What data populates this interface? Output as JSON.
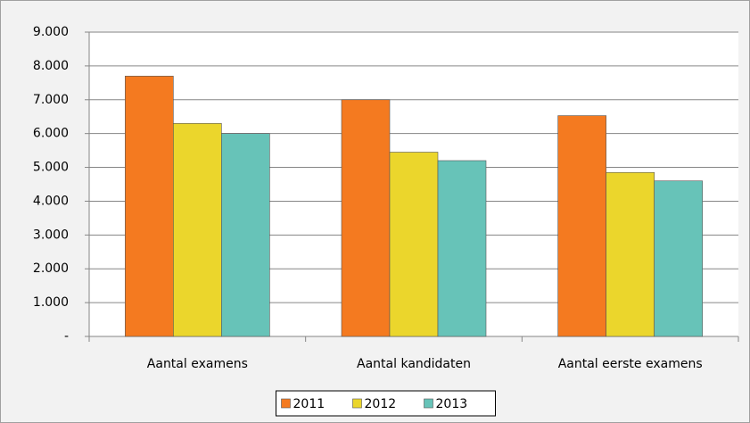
{
  "chart_data": {
    "type": "bar",
    "categories": [
      "Aantal examens",
      "Aantal kandidaten",
      "Aantal eerste examens"
    ],
    "series": [
      {
        "name": "2011",
        "color": "#f47a20",
        "values": [
          7700,
          7000,
          6530
        ]
      },
      {
        "name": "2012",
        "color": "#ebd62c",
        "values": [
          6300,
          5450,
          4850
        ]
      },
      {
        "name": "2013",
        "color": "#67c3b8",
        "values": [
          6000,
          5200,
          4600
        ]
      }
    ],
    "ylim": [
      0,
      9000
    ],
    "yticks": [
      {
        "value": 0,
        "label": "-"
      },
      {
        "value": 1000,
        "label": "1.000"
      },
      {
        "value": 2000,
        "label": "2.000"
      },
      {
        "value": 3000,
        "label": "3.000"
      },
      {
        "value": 4000,
        "label": "4.000"
      },
      {
        "value": 5000,
        "label": "5.000"
      },
      {
        "value": 6000,
        "label": "6.000"
      },
      {
        "value": 7000,
        "label": "7.000"
      },
      {
        "value": 8000,
        "label": "8.000"
      },
      {
        "value": 9000,
        "label": "9.000"
      }
    ],
    "grid": true,
    "legend": "bottom"
  }
}
